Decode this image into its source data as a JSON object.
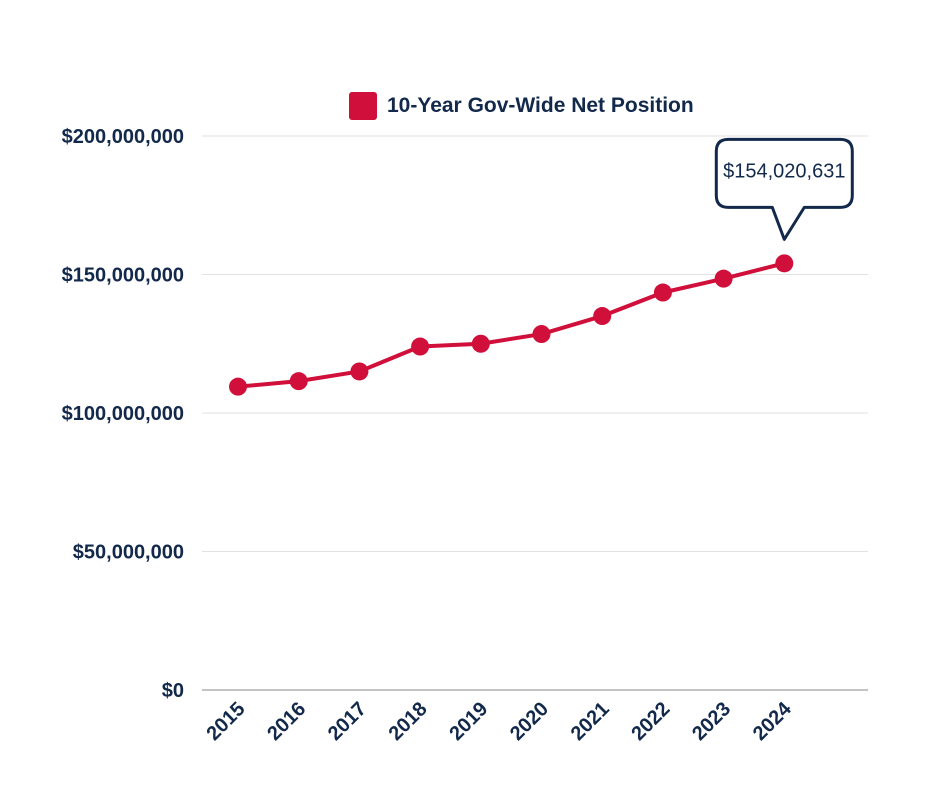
{
  "colors": {
    "series": "#d0103a",
    "text": "#13294b",
    "grid": "#e2e2e2",
    "axis": "#c4c4c4"
  },
  "legend": {
    "label": "10-Year Gov-Wide Net Position"
  },
  "callout": {
    "label": "$154,020,631"
  },
  "chart_data": {
    "type": "line",
    "x": [
      "2015",
      "2016",
      "2017",
      "2018",
      "2019",
      "2020",
      "2021",
      "2022",
      "2023",
      "2024"
    ],
    "series": [
      {
        "name": "10-Year Gov-Wide Net Position",
        "values": [
          109500000,
          111500000,
          115000000,
          124000000,
          125000000,
          128500000,
          135000000,
          143500000,
          148500000,
          154020631
        ]
      }
    ],
    "ylim": [
      0,
      200000000
    ],
    "yticks": [
      0,
      50000000,
      100000000,
      150000000,
      200000000
    ],
    "ytick_labels": [
      "$0",
      "$50,000,000",
      "$100,000,000",
      "$150,000,000",
      "$200,000,000"
    ],
    "grid": true,
    "legend_position": "top"
  }
}
